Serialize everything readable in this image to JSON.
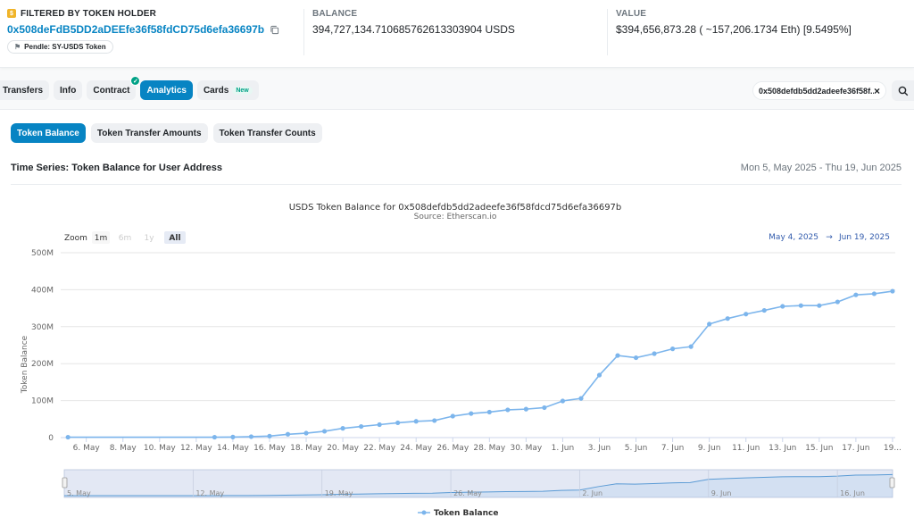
{
  "header": {
    "holder_label": "FILTERED BY TOKEN HOLDER",
    "holder_address": "0x508deFdB5DD2aDEEfe36f58fdCD75d6efa36697b",
    "tag": "Pendle: SY-USDS Token",
    "balance_label": "BALANCE",
    "balance_value": "394,727,134.710685762613303904 USDS",
    "value_label": "VALUE",
    "value_value": "$394,656,873.28 ( ~157,206.1734 Eth) [9.5495%]"
  },
  "tabs": [
    {
      "label": "Transfers"
    },
    {
      "label": "Info"
    },
    {
      "label": "Contract"
    },
    {
      "label": "Analytics"
    },
    {
      "label": "Cards",
      "badge": "New"
    }
  ],
  "filter": {
    "text": "0x508defdb5dd2adeefe36f58f..."
  },
  "subtabs": [
    "Token Balance",
    "Token Transfer Amounts",
    "Token Transfer Counts"
  ],
  "section": {
    "title": "Time Series: Token Balance for User Address",
    "range": "Mon 5, May 2025 - Thu 19, Jun 2025"
  },
  "zoom": {
    "label": "Zoom",
    "options": [
      "1m",
      "6m",
      "1y",
      "All"
    ],
    "active": "All"
  },
  "date_range": {
    "from": "May 4, 2025",
    "arrow": "→",
    "to": "Jun 19, 2025"
  },
  "colors": {
    "accent": "#0784c3",
    "series": "#7cb5ec",
    "navigator_fill": "#ccd6eb"
  },
  "chart_data": {
    "type": "line",
    "title": "USDS Token Balance for 0x508defdb5dd2adeefe36f58fdcd75d6efa36697b",
    "subtitle": "Source: Etherscan.io",
    "xlabel": "",
    "ylabel": "Token Balance",
    "ylim": [
      0,
      500
    ],
    "y_ticks": [
      "0",
      "100M",
      "200M",
      "300M",
      "400M",
      "500M"
    ],
    "x_ticks": [
      "6. May",
      "8. May",
      "10. May",
      "12. May",
      "14. May",
      "16. May",
      "18. May",
      "20. May",
      "22. May",
      "24. May",
      "26. May",
      "28. May",
      "30. May",
      "1. Jun",
      "3. Jun",
      "5. Jun",
      "7. Jun",
      "9. Jun",
      "11. Jun",
      "13. Jun",
      "15. Jun",
      "17. Jun",
      "19..."
    ],
    "navigator_ticks": [
      "5. May",
      "12. May",
      "19. May",
      "26. May",
      "2. Jun",
      "9. Jun",
      "16. Jun"
    ],
    "grid": true,
    "legend": "bottom",
    "series": [
      {
        "name": "Token Balance",
        "x": [
          "2025-05-05",
          "2025-05-13",
          "2025-05-14",
          "2025-05-15",
          "2025-05-16",
          "2025-05-17",
          "2025-05-18",
          "2025-05-19",
          "2025-05-20",
          "2025-05-21",
          "2025-05-22",
          "2025-05-23",
          "2025-05-24",
          "2025-05-25",
          "2025-05-26",
          "2025-05-27",
          "2025-05-28",
          "2025-05-29",
          "2025-05-30",
          "2025-05-31",
          "2025-06-01",
          "2025-06-02",
          "2025-06-03",
          "2025-06-04",
          "2025-06-05",
          "2025-06-06",
          "2025-06-07",
          "2025-06-08",
          "2025-06-09",
          "2025-06-10",
          "2025-06-11",
          "2025-06-12",
          "2025-06-13",
          "2025-06-14",
          "2025-06-15",
          "2025-06-16",
          "2025-06-17",
          "2025-06-18",
          "2025-06-19"
        ],
        "values": [
          1,
          1,
          1.5,
          2.5,
          4,
          9,
          12,
          17,
          25,
          30,
          35,
          40,
          44,
          46,
          58,
          65,
          69,
          75,
          77,
          81,
          99,
          106,
          169,
          222,
          216,
          227,
          240,
          246,
          307,
          322,
          334,
          344,
          355,
          357,
          357,
          367,
          386,
          389,
          396
        ]
      }
    ]
  }
}
